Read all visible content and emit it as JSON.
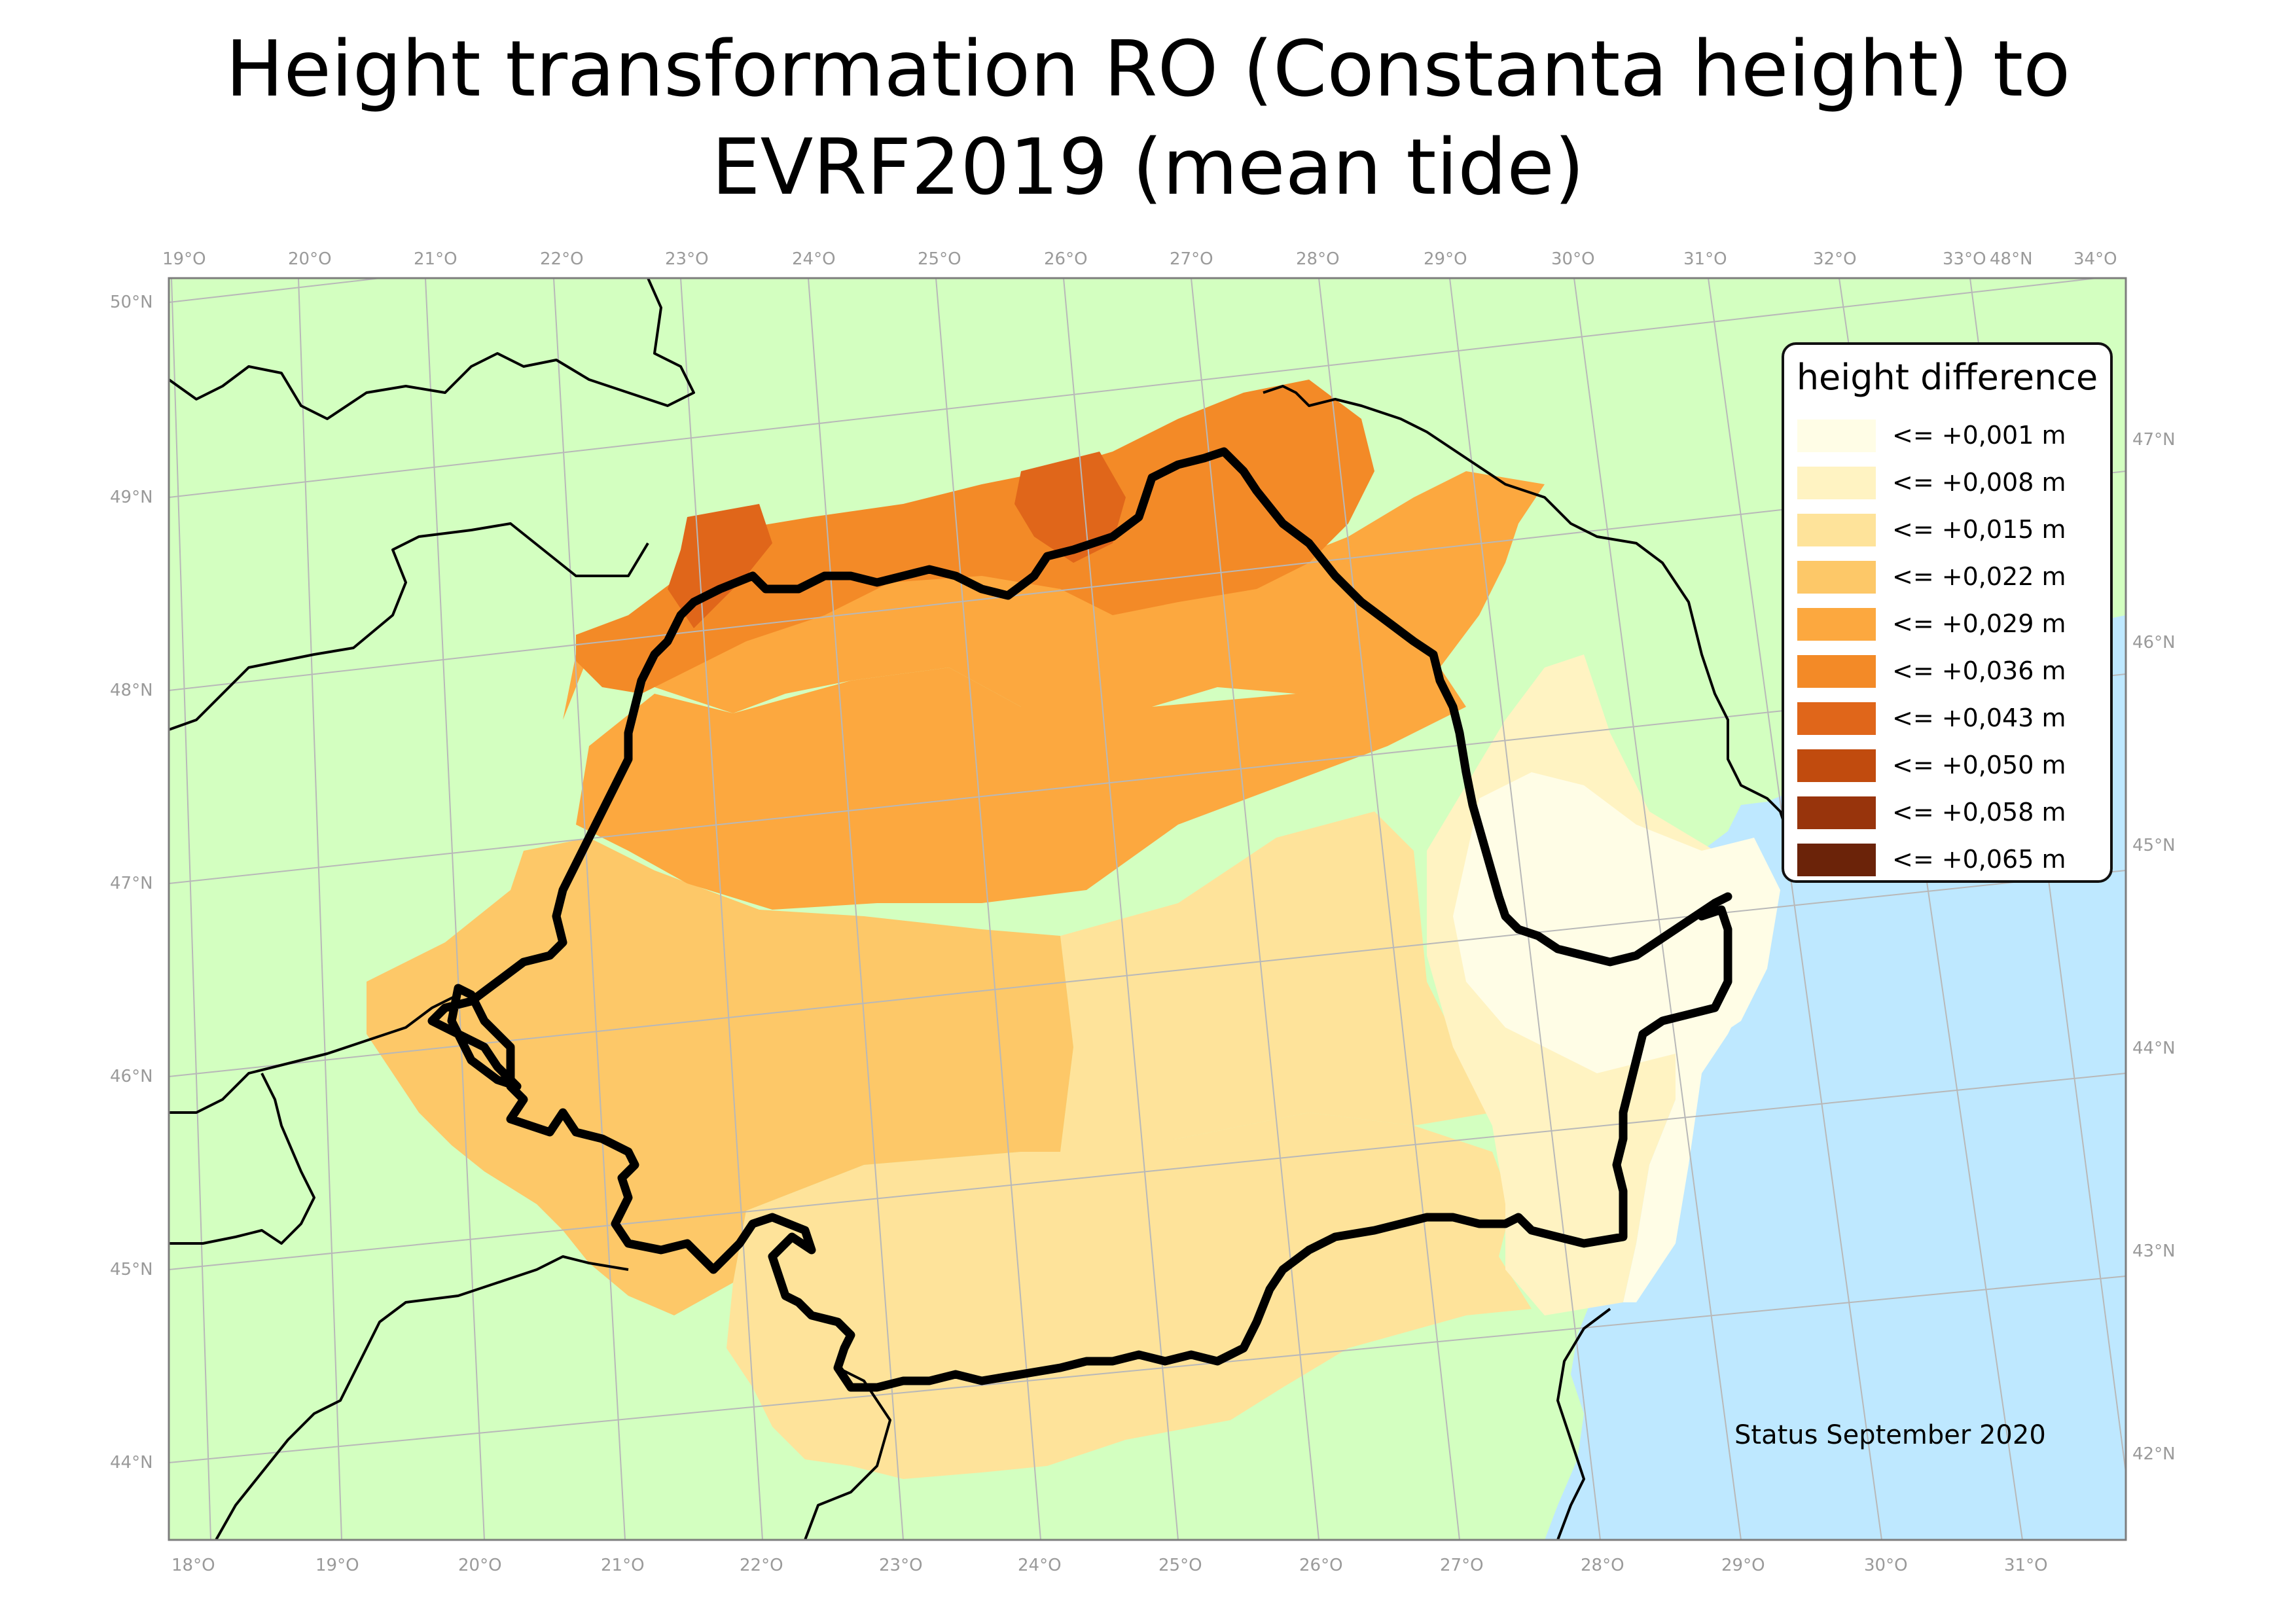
{
  "title_lines": [
    "Height transformation RO (Constanta height) to",
    "EVRF2019 (mean tide)"
  ],
  "top_ticks": [
    "19°O",
    "20°O",
    "21°O",
    "22°O",
    "23°O",
    "24°O",
    "25°O",
    "26°O",
    "27°O",
    "28°O",
    "29°O",
    "30°O",
    "31°O",
    "32°O",
    "33°O",
    "48°N",
    "34°O"
  ],
  "bottom_ticks": [
    "18°O",
    "19°O",
    "20°O",
    "21°O",
    "22°O",
    "23°O",
    "24°O",
    "25°O",
    "26°O",
    "27°O",
    "28°O",
    "29°O",
    "30°O",
    "31°O"
  ],
  "left_ticks": [
    "50°N",
    "49°N",
    "48°N",
    "47°N",
    "46°N",
    "45°N",
    "44°N"
  ],
  "right_ticks": [
    "47°N",
    "46°N",
    "45°N",
    "44°N",
    "43°N",
    "42°N"
  ],
  "legend": {
    "title": "height difference",
    "items": [
      {
        "label": "<= +0,001 m",
        "color": "#fffde6"
      },
      {
        "label": "<= +0,008 m",
        "color": "#fff3c2"
      },
      {
        "label": "<= +0,015 m",
        "color": "#fee39a"
      },
      {
        "label": "<= +0,022 m",
        "color": "#fdc868"
      },
      {
        "label": "<= +0,029 m",
        "color": "#fca83f"
      },
      {
        "label": "<= +0,036 m",
        "color": "#f38a27"
      },
      {
        "label": "<= +0,043 m",
        "color": "#e0661a"
      },
      {
        "label": "<= +0,050 m",
        "color": "#c14b0e"
      },
      {
        "label": "<= +0,058 m",
        "color": "#98340c"
      },
      {
        "label": "<= +0,065 m",
        "color": "#6b2309"
      }
    ]
  },
  "status": "Status September 2020",
  "colors": {
    "land": "#d3ffc0",
    "sea": "#bee8ff",
    "border": "#000000",
    "graticule": "#b8b8b8"
  }
}
